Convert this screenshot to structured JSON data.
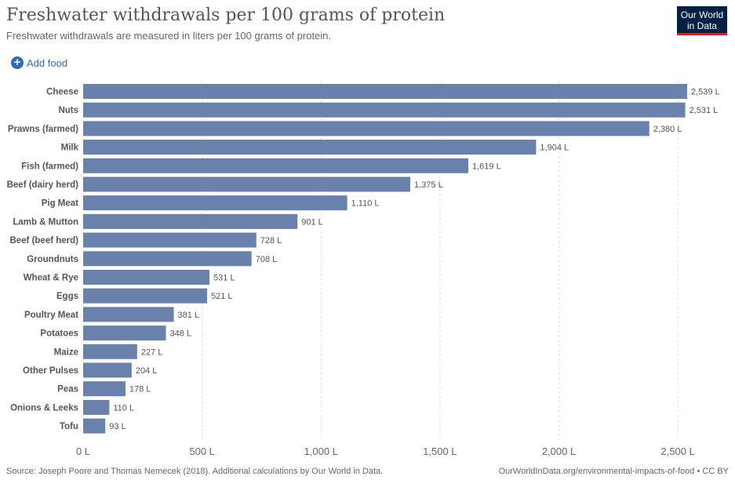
{
  "header": {
    "title": "Freshwater withdrawals per 100 grams of protein",
    "subtitle": "Freshwater withdrawals are measured in liters per 100 grams of protein.",
    "logo_line1": "Our World",
    "logo_line2": "in Data"
  },
  "controls": {
    "add_food_label": "Add food"
  },
  "footer": {
    "source": "Source: Joseph Poore and Thomas Nemecek (2018). Additional calculations by Our World in Data.",
    "link": "OurWorldInData.org/environmental-impacts-of-food • CC BY"
  },
  "colors": {
    "bar": "#6a81ab",
    "grid": "#dddddd",
    "logo_bg": "#002147",
    "logo_accent": "#ce261e",
    "link": "#2d6ab8"
  },
  "icons": [
    "plus-circle-icon"
  ],
  "chart_data": {
    "type": "bar",
    "orientation": "horizontal",
    "unit_suffix": " L",
    "categories": [
      "Cheese",
      "Nuts",
      "Prawns (farmed)",
      "Milk",
      "Fish (farmed)",
      "Beef (dairy herd)",
      "Pig Meat",
      "Lamb & Mutton",
      "Beef (beef herd)",
      "Groundnuts",
      "Wheat & Rye",
      "Eggs",
      "Poultry Meat",
      "Potatoes",
      "Maize",
      "Other Pulses",
      "Peas",
      "Onions & Leeks",
      "Tofu"
    ],
    "values": [
      2539,
      2531,
      2380,
      1904,
      1619,
      1375,
      1110,
      901,
      728,
      708,
      531,
      521,
      381,
      348,
      227,
      204,
      178,
      110,
      93
    ],
    "value_labels": [
      "2,539 L",
      "2,531 L",
      "2,380 L",
      "1,904 L",
      "1,619 L",
      "1,375 L",
      "1,110 L",
      "901 L",
      "728 L",
      "708 L",
      "531 L",
      "521 L",
      "381 L",
      "348 L",
      "227 L",
      "204 L",
      "178 L",
      "110 L",
      "93 L"
    ],
    "xticks": [
      0,
      500,
      1000,
      1500,
      2000,
      2500
    ],
    "xtick_labels": [
      "0 L",
      "500 L",
      "1,000 L",
      "1,500 L",
      "2,000 L",
      "2,500 L"
    ],
    "xlim": [
      0,
      2539
    ],
    "grid": true
  }
}
